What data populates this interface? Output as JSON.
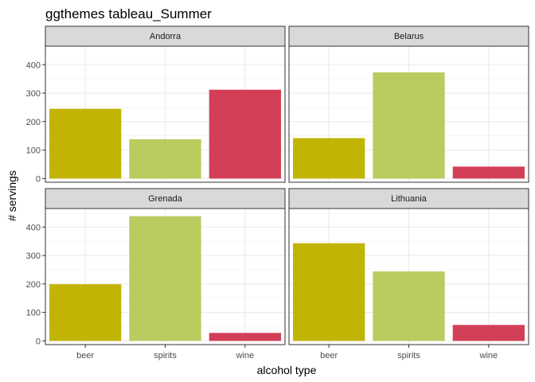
{
  "chart_data": {
    "type": "bar",
    "title": "ggthemes tableau_Summer",
    "xlabel": "alcohol type",
    "ylabel": "# servings",
    "categories": [
      "beer",
      "spirits",
      "wine"
    ],
    "ylim": [
      -13,
      465
    ],
    "yticks": [
      0,
      100,
      200,
      300,
      400
    ],
    "grid": true,
    "legend": "none",
    "colors": {
      "beer": "#c2b403",
      "spirits": "#bbcb5f",
      "wine": "#d33f56"
    },
    "facets": [
      {
        "name": "Andorra",
        "values": [
          245,
          138,
          312
        ]
      },
      {
        "name": "Belarus",
        "values": [
          142,
          373,
          42
        ]
      },
      {
        "name": "Grenada",
        "values": [
          199,
          438,
          28
        ]
      },
      {
        "name": "Lithuania",
        "values": [
          343,
          244,
          56
        ]
      }
    ]
  }
}
